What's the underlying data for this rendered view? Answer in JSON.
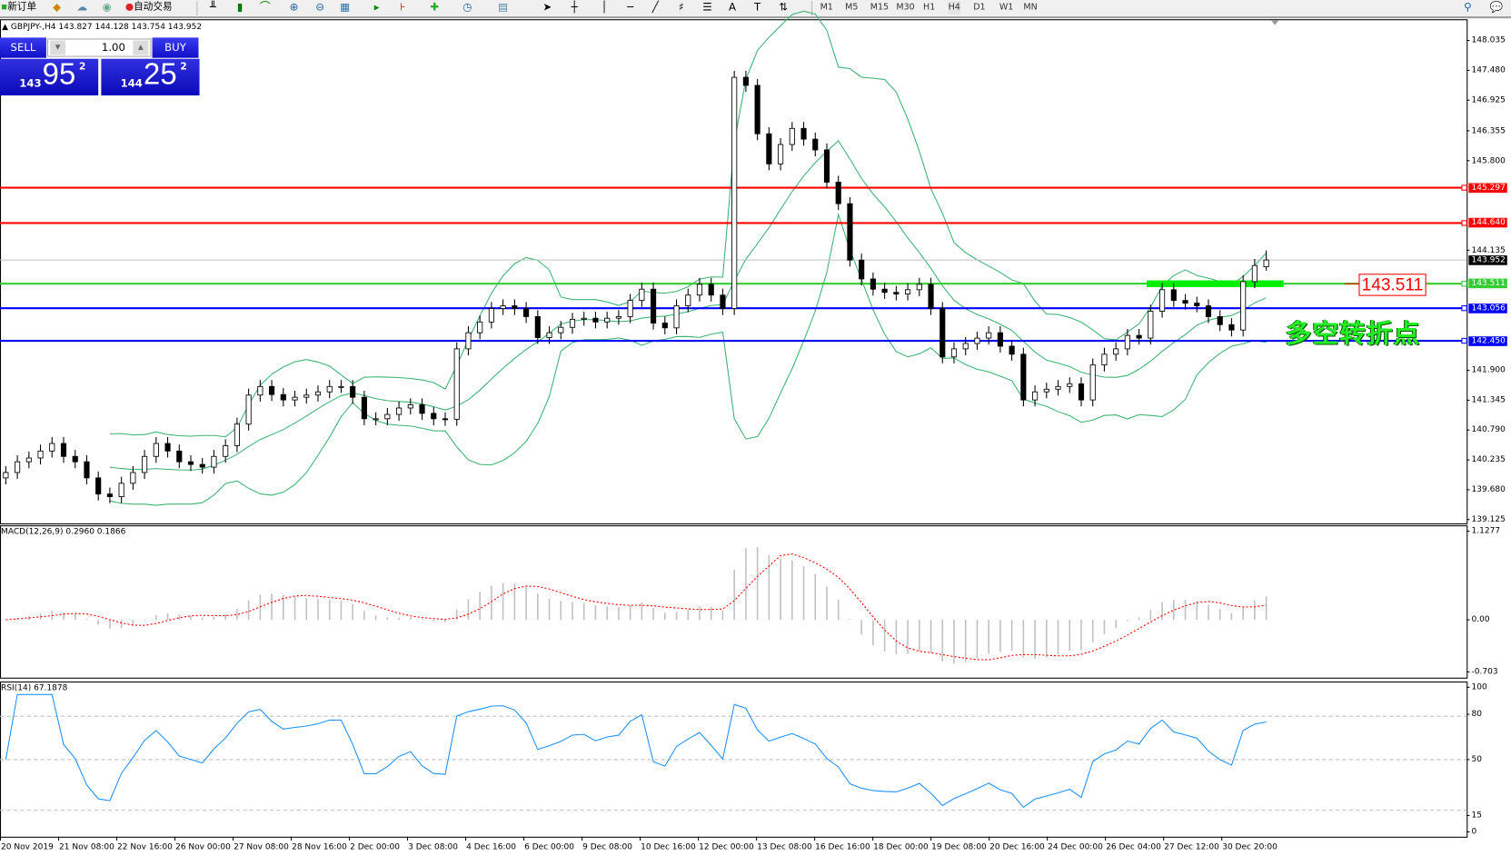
{
  "toolbar": {
    "new_order": "新订单",
    "auto_trading": "自动交易",
    "timeframes": [
      "M1",
      "M5",
      "M15",
      "M30",
      "H1",
      "H4",
      "D1",
      "W1",
      "MN"
    ],
    "active_timeframe": "H4",
    "icons": [
      "new-order-icon",
      "history-icon",
      "market-watch-icon",
      "signals-icon",
      "auto-trading-icon",
      "bar-chart-icon",
      "candlestick-icon",
      "line-chart-icon",
      "zoom-in-icon",
      "zoom-out-icon",
      "tile-windows-icon",
      "chart-shift-icon",
      "autoscroll-icon",
      "indicators-icon",
      "periods-icon",
      "templates-icon",
      "cursor-icon",
      "crosshair-icon",
      "vertical-line-icon",
      "horizontal-line-icon",
      "trendline-icon",
      "fibonacci-icon",
      "fibo-fan-icon",
      "text-icon",
      "text-label-icon",
      "arrows-icon",
      "search-icon",
      "chat-icon"
    ]
  },
  "symbol_info": "GBPJPY-,H4  143.827 144.128 143.754 143.952",
  "one_click": {
    "sell_label": "SELL",
    "buy_label": "BUY",
    "lot": "1.00",
    "sell_price": {
      "prefix": "143",
      "big": "95",
      "pip": "2"
    },
    "buy_price": {
      "prefix": "144",
      "big": "25",
      "pip": "2"
    },
    "color": "#1a1ad8"
  },
  "chart_data": [
    {
      "type": "candlestick",
      "symbol": "GBPJPY-",
      "timeframe": "H4",
      "last_bar": {
        "open": 143.827,
        "high": 144.128,
        "low": 143.754,
        "close": 143.952
      },
      "ylim": [
        139.125,
        148.035
      ],
      "y_ticks": [
        "148.035",
        "147.480",
        "146.925",
        "146.355",
        "145.800",
        "144.135",
        "141.900",
        "141.345",
        "140.790",
        "140.235",
        "139.680",
        "139.125"
      ],
      "x_ticks": [
        "20 Nov 2019",
        "21 Nov 08:00",
        "22 Nov 16:00",
        "26 Nov 00:00",
        "27 Nov 08:00",
        "28 Nov 16:00",
        "2 Dec 00:00",
        "3 Dec 08:00",
        "4 Dec 16:00",
        "6 Dec 00:00",
        "9 Dec 08:00",
        "10 Dec 16:00",
        "12 Dec 00:00",
        "13 Dec 08:00",
        "16 Dec 16:00",
        "18 Dec 00:00",
        "19 Dec 08:00",
        "20 Dec 16:00",
        "24 Dec 00:00",
        "26 Dec 04:00",
        "27 Dec 12:00",
        "30 Dec 20:00"
      ],
      "close": [
        140.0,
        140.2,
        140.27,
        140.4,
        140.54,
        140.3,
        140.2,
        139.9,
        139.6,
        139.55,
        139.8,
        140.0,
        140.3,
        140.54,
        140.4,
        140.2,
        140.15,
        140.1,
        140.3,
        140.5,
        140.9,
        141.44,
        141.6,
        141.45,
        141.35,
        141.4,
        141.44,
        141.5,
        141.6,
        141.6,
        141.4,
        141.0,
        141.0,
        141.08,
        141.2,
        141.26,
        141.1,
        141.0,
        140.99,
        142.3,
        142.6,
        142.8,
        143.05,
        143.1,
        143.05,
        142.9,
        142.51,
        142.6,
        142.7,
        142.85,
        142.87,
        142.8,
        142.87,
        142.9,
        143.2,
        143.41,
        142.78,
        142.69,
        143.1,
        143.3,
        143.5,
        143.3,
        143.05,
        147.35,
        147.2,
        146.3,
        145.74,
        146.1,
        146.4,
        146.2,
        146.0,
        145.4,
        145.0,
        143.95,
        143.6,
        143.41,
        143.35,
        143.32,
        143.4,
        143.5,
        143.05,
        142.15,
        142.3,
        142.4,
        142.5,
        142.6,
        142.35,
        142.2,
        141.35,
        141.5,
        141.55,
        141.6,
        141.65,
        141.35,
        142.0,
        142.2,
        142.3,
        142.55,
        142.5,
        143.0,
        143.4,
        143.2,
        143.15,
        143.1,
        142.9,
        142.75,
        142.65,
        143.55,
        143.85,
        143.952
      ],
      "overlays": {
        "bollinger_color": "#3cb371"
      },
      "horizontal_lines": [
        {
          "price": "145.297",
          "color": "#ff0000"
        },
        {
          "price": "144.640",
          "color": "#ff0000"
        },
        {
          "price": "143.952",
          "color": "#000000",
          "kind": "bid"
        },
        {
          "price": "143.511",
          "color": "#33cc33"
        },
        {
          "price": "143.056",
          "color": "#0000ff"
        },
        {
          "price": "142.450",
          "color": "#0000ff"
        }
      ],
      "annotations": {
        "price_box": "143.511",
        "text": "多空转折点",
        "text_color": "#22ee22"
      }
    },
    {
      "type": "bar+line",
      "title": "MACD(12,26,9) 0.2960 0.1866",
      "y_ticks": [
        "1.1277",
        "0.00",
        "-0.703"
      ],
      "ylim": [
        -0.703,
        1.1277
      ],
      "histogram_color": "#c0c0c0",
      "signal_color": "#ff0000"
    },
    {
      "type": "line",
      "title": "RSI(14) 67.1878",
      "y_ticks": [
        "100",
        "80",
        "50",
        "15",
        "0"
      ],
      "ylim": [
        0,
        100
      ],
      "levels": [
        80,
        50,
        15
      ],
      "line_color": "#1e90ff"
    }
  ]
}
